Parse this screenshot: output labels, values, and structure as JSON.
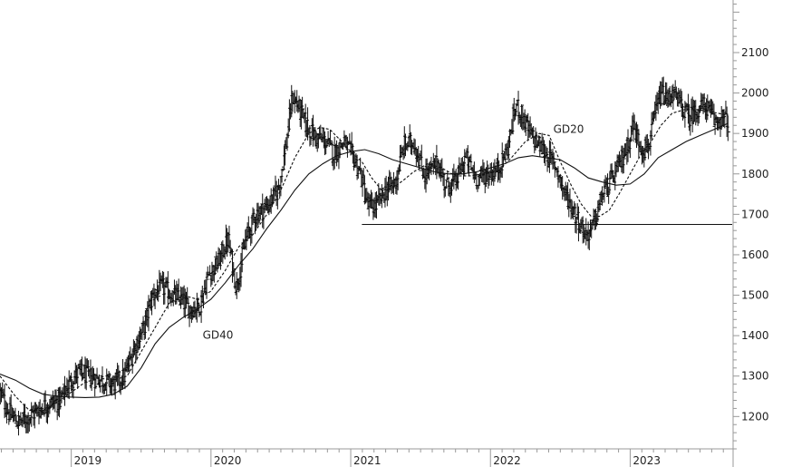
{
  "chart_data": {
    "type": "ohlc",
    "title": "",
    "xlabel": "",
    "ylabel": "",
    "ylim": [
      1120,
      2230
    ],
    "y_ticks": [
      1200,
      1300,
      1400,
      1500,
      1600,
      1700,
      1800,
      1900,
      2000,
      2100
    ],
    "x_ticks": [
      {
        "label": "2019",
        "x": 2019.0
      },
      {
        "label": "2020",
        "x": 2020.0
      },
      {
        "label": "2021",
        "x": 2021.0
      },
      {
        "label": "2022",
        "x": 2022.0
      },
      {
        "label": "2023",
        "x": 2023.0
      }
    ],
    "xlim": [
      2018.49,
      2023.73
    ],
    "grid": false,
    "price_path": [
      [
        2018.49,
        1260
      ],
      [
        2018.55,
        1210
      ],
      [
        2018.62,
        1185
      ],
      [
        2018.72,
        1205
      ],
      [
        2018.82,
        1230
      ],
      [
        2018.92,
        1240
      ],
      [
        2018.98,
        1280
      ],
      [
        2019.05,
        1310
      ],
      [
        2019.12,
        1300
      ],
      [
        2019.22,
        1290
      ],
      [
        2019.3,
        1280
      ],
      [
        2019.38,
        1300
      ],
      [
        2019.45,
        1370
      ],
      [
        2019.52,
        1420
      ],
      [
        2019.58,
        1500
      ],
      [
        2019.65,
        1520
      ],
      [
        2019.72,
        1500
      ],
      [
        2019.78,
        1490
      ],
      [
        2019.85,
        1465
      ],
      [
        2019.92,
        1475
      ],
      [
        2019.98,
        1550
      ],
      [
        2020.05,
        1580
      ],
      [
        2020.12,
        1640
      ],
      [
        2020.18,
        1520
      ],
      [
        2020.25,
        1640
      ],
      [
        2020.32,
        1700
      ],
      [
        2020.4,
        1720
      ],
      [
        2020.48,
        1760
      ],
      [
        2020.54,
        1880
      ],
      [
        2020.58,
        1990
      ],
      [
        2020.62,
        1970
      ],
      [
        2020.68,
        1920
      ],
      [
        2020.75,
        1890
      ],
      [
        2020.82,
        1880
      ],
      [
        2020.88,
        1850
      ],
      [
        2020.95,
        1880
      ],
      [
        2021.02,
        1840
      ],
      [
        2021.07,
        1800
      ],
      [
        2021.12,
        1720
      ],
      [
        2021.18,
        1720
      ],
      [
        2021.25,
        1760
      ],
      [
        2021.32,
        1780
      ],
      [
        2021.38,
        1870
      ],
      [
        2021.45,
        1880
      ],
      [
        2021.52,
        1800
      ],
      [
        2021.58,
        1810
      ],
      [
        2021.62,
        1830
      ],
      [
        2021.68,
        1770
      ],
      [
        2021.75,
        1780
      ],
      [
        2021.82,
        1840
      ],
      [
        2021.9,
        1790
      ],
      [
        2021.98,
        1800
      ],
      [
        2022.05,
        1810
      ],
      [
        2022.12,
        1860
      ],
      [
        2022.18,
        1970
      ],
      [
        2022.22,
        1950
      ],
      [
        2022.28,
        1900
      ],
      [
        2022.35,
        1870
      ],
      [
        2022.42,
        1840
      ],
      [
        2022.48,
        1810
      ],
      [
        2022.52,
        1760
      ],
      [
        2022.58,
        1720
      ],
      [
        2022.62,
        1690
      ],
      [
        2022.68,
        1650
      ],
      [
        2022.72,
        1660
      ],
      [
        2022.76,
        1700
      ],
      [
        2022.8,
        1750
      ],
      [
        2022.86,
        1780
      ],
      [
        2022.92,
        1820
      ],
      [
        2022.98,
        1870
      ],
      [
        2023.02,
        1920
      ],
      [
        2023.06,
        1880
      ],
      [
        2023.1,
        1860
      ],
      [
        2023.14,
        1880
      ],
      [
        2023.18,
        1950
      ],
      [
        2023.22,
        2000
      ],
      [
        2023.26,
        1980
      ],
      [
        2023.3,
        2000
      ],
      [
        2023.36,
        1970
      ],
      [
        2023.42,
        1940
      ],
      [
        2023.48,
        1960
      ],
      [
        2023.54,
        1970
      ],
      [
        2023.6,
        1930
      ],
      [
        2023.66,
        1940
      ],
      [
        2023.7,
        1925
      ]
    ],
    "series": [
      {
        "name": "GD20",
        "style": "dashed",
        "points": [
          [
            2018.49,
            1300
          ],
          [
            2018.6,
            1250
          ],
          [
            2018.7,
            1215
          ],
          [
            2018.8,
            1215
          ],
          [
            2018.9,
            1235
          ],
          [
            2019.0,
            1260
          ],
          [
            2019.1,
            1285
          ],
          [
            2019.2,
            1295
          ],
          [
            2019.3,
            1290
          ],
          [
            2019.4,
            1300
          ],
          [
            2019.5,
            1360
          ],
          [
            2019.6,
            1420
          ],
          [
            2019.7,
            1480
          ],
          [
            2019.8,
            1500
          ],
          [
            2019.9,
            1490
          ],
          [
            2020.0,
            1510
          ],
          [
            2020.1,
            1560
          ],
          [
            2020.2,
            1620
          ],
          [
            2020.3,
            1650
          ],
          [
            2020.4,
            1700
          ],
          [
            2020.5,
            1760
          ],
          [
            2020.6,
            1840
          ],
          [
            2020.7,
            1900
          ],
          [
            2020.78,
            1915
          ],
          [
            2020.85,
            1910
          ],
          [
            2020.95,
            1875
          ],
          [
            2021.0,
            1855
          ],
          [
            2021.08,
            1830
          ],
          [
            2021.15,
            1790
          ],
          [
            2021.22,
            1760
          ],
          [
            2021.3,
            1765
          ],
          [
            2021.38,
            1785
          ],
          [
            2021.45,
            1805
          ],
          [
            2021.55,
            1825
          ],
          [
            2021.65,
            1815
          ],
          [
            2021.75,
            1795
          ],
          [
            2021.85,
            1795
          ],
          [
            2021.95,
            1800
          ],
          [
            2022.05,
            1805
          ],
          [
            2022.15,
            1840
          ],
          [
            2022.25,
            1880
          ],
          [
            2022.35,
            1900
          ],
          [
            2022.42,
            1895
          ],
          [
            2022.5,
            1830
          ],
          [
            2022.58,
            1770
          ],
          [
            2022.65,
            1725
          ],
          [
            2022.72,
            1695
          ],
          [
            2022.78,
            1695
          ],
          [
            2022.85,
            1710
          ],
          [
            2022.92,
            1750
          ],
          [
            2023.0,
            1800
          ],
          [
            2023.08,
            1850
          ],
          [
            2023.15,
            1880
          ],
          [
            2023.22,
            1920
          ],
          [
            2023.3,
            1950
          ],
          [
            2023.4,
            1960
          ],
          [
            2023.5,
            1958
          ],
          [
            2023.6,
            1952
          ],
          [
            2023.7,
            1945
          ]
        ]
      },
      {
        "name": "GD40",
        "style": "solid",
        "points": [
          [
            2018.49,
            1305
          ],
          [
            2018.6,
            1290
          ],
          [
            2018.7,
            1270
          ],
          [
            2018.8,
            1255
          ],
          [
            2018.9,
            1250
          ],
          [
            2019.0,
            1248
          ],
          [
            2019.1,
            1247
          ],
          [
            2019.2,
            1248
          ],
          [
            2019.3,
            1255
          ],
          [
            2019.4,
            1275
          ],
          [
            2019.5,
            1320
          ],
          [
            2019.6,
            1380
          ],
          [
            2019.7,
            1420
          ],
          [
            2019.8,
            1445
          ],
          [
            2019.9,
            1465
          ],
          [
            2020.0,
            1490
          ],
          [
            2020.1,
            1530
          ],
          [
            2020.2,
            1575
          ],
          [
            2020.3,
            1615
          ],
          [
            2020.4,
            1665
          ],
          [
            2020.5,
            1710
          ],
          [
            2020.6,
            1760
          ],
          [
            2020.7,
            1800
          ],
          [
            2020.8,
            1825
          ],
          [
            2020.9,
            1845
          ],
          [
            2021.0,
            1855
          ],
          [
            2021.1,
            1860
          ],
          [
            2021.2,
            1850
          ],
          [
            2021.3,
            1835
          ],
          [
            2021.4,
            1825
          ],
          [
            2021.5,
            1815
          ],
          [
            2021.6,
            1805
          ],
          [
            2021.7,
            1800
          ],
          [
            2021.8,
            1800
          ],
          [
            2021.9,
            1805
          ],
          [
            2022.0,
            1815
          ],
          [
            2022.1,
            1825
          ],
          [
            2022.2,
            1840
          ],
          [
            2022.3,
            1845
          ],
          [
            2022.4,
            1840
          ],
          [
            2022.5,
            1835
          ],
          [
            2022.6,
            1815
          ],
          [
            2022.7,
            1790
          ],
          [
            2022.8,
            1780
          ],
          [
            2022.9,
            1772
          ],
          [
            2023.0,
            1775
          ],
          [
            2023.1,
            1800
          ],
          [
            2023.2,
            1840
          ],
          [
            2023.3,
            1860
          ],
          [
            2023.4,
            1880
          ],
          [
            2023.5,
            1895
          ],
          [
            2023.6,
            1910
          ],
          [
            2023.7,
            1925
          ]
        ]
      }
    ],
    "annotations": [
      {
        "text": "GD20",
        "x": 2022.45,
        "y": 1902
      },
      {
        "text": "GD40",
        "x": 2019.94,
        "y": 1393
      }
    ],
    "horizontal_line": {
      "y": 1675,
      "x_start": 2021.08,
      "x_end": 2023.73
    }
  }
}
